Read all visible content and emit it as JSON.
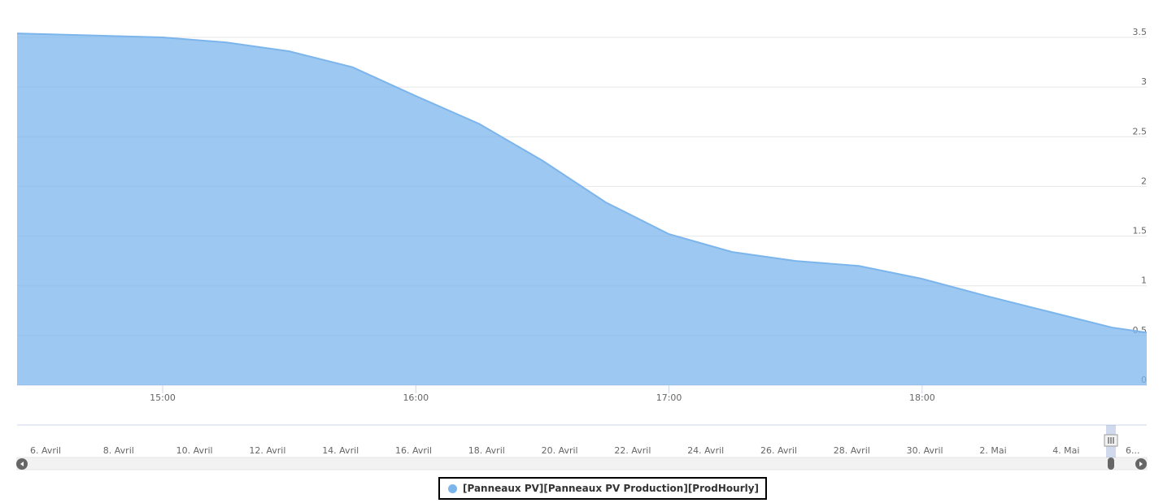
{
  "chart_data": {
    "type": "area",
    "x": [
      14.425,
      15,
      15.25,
      15.5,
      15.75,
      16,
      16.25,
      16.5,
      16.75,
      17,
      17.25,
      17.5,
      17.75,
      18,
      18.25,
      18.5,
      18.75,
      18.887
    ],
    "series": [
      {
        "name": "[Panneaux PV][Panneaux PV Production][ProdHourly]",
        "color": "#7cb5ec",
        "values": [
          3.54,
          3.5,
          3.45,
          3.36,
          3.2,
          2.91,
          2.63,
          2.26,
          1.84,
          1.52,
          1.34,
          1.25,
          1.2,
          1.07,
          0.9,
          0.74,
          0.58,
          0.53
        ]
      }
    ],
    "xlim": [
      14.425,
      18.887
    ],
    "xticks": [
      {
        "value": 15,
        "label": "15:00"
      },
      {
        "value": 16,
        "label": "16:00"
      },
      {
        "value": 17,
        "label": "17:00"
      },
      {
        "value": 18,
        "label": "18:00"
      }
    ],
    "ylim": [
      0,
      3.5
    ],
    "yticks": [
      0,
      0.5,
      1,
      1.5,
      2,
      2.5,
      3,
      3.5
    ],
    "grid": true,
    "legend": "bottom",
    "navigator": {
      "labels": [
        "6. Avril",
        "8. Avril",
        "10. Avril",
        "12. Avril",
        "14. Avril",
        "16. Avril",
        "18. Avril",
        "20. Avril",
        "22. Avril",
        "24. Avril",
        "26. Avril",
        "28. Avril",
        "30. Avril",
        "2. Mai",
        "4. Mai",
        "6..."
      ]
    }
  }
}
